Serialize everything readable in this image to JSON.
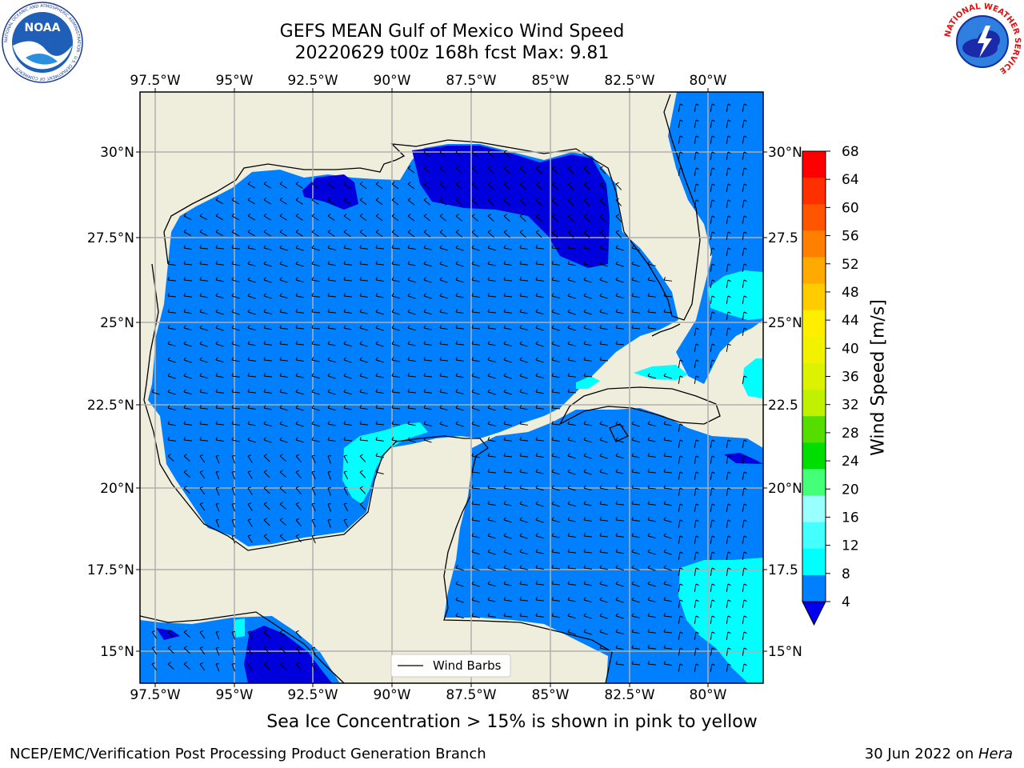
{
  "title": {
    "line1": "GEFS MEAN Gulf of Mexico Wind Speed",
    "line2": "20220629 t00z 168h fcst   Max: 9.81"
  },
  "map": {
    "top_lon_labels": [
      "97.5°W",
      "95°W",
      "92.5°W",
      "90°W",
      "87.5°W",
      "85°W",
      "82.5°W",
      "80°W"
    ],
    "bottom_lon_labels": [
      "97.5°W",
      "95°W",
      "92.5°W",
      "90°W",
      "87.5°W",
      "85°W",
      "82.5°W",
      "80°W"
    ],
    "left_lat_labels": [
      "30°N",
      "27.5°N",
      "25°N",
      "22.5°N",
      "20°N",
      "17.5°N",
      "15°N"
    ],
    "right_lat_labels": [
      "30°N",
      "27.5",
      "25°N",
      "22.5",
      "20°N",
      "17.5",
      "15°N"
    ],
    "legend_label": "Wind Barbs",
    "colors": {
      "land": "#efeedc",
      "ocean_light": "#0080ff",
      "ocean_dark": "#0000dd",
      "ocean_cyan": "#00ffff",
      "grid": "#b0b0b0"
    }
  },
  "colorbar": {
    "label": "Wind Speed [m/s]",
    "ticks": [
      "68",
      "64",
      "60",
      "56",
      "52",
      "48",
      "44",
      "40",
      "36",
      "32",
      "28",
      "24",
      "20",
      "16",
      "12",
      "8",
      "4"
    ],
    "colors": [
      "#ff0000",
      "#ff3000",
      "#ff5500",
      "#ff8000",
      "#ffaa00",
      "#ffcc00",
      "#ffee00",
      "#f2f200",
      "#ddf200",
      "#c0f200",
      "#55dd00",
      "#00dd00",
      "#44ff77",
      "#99ffff",
      "#44ffff",
      "#00ffff",
      "#0080ff"
    ],
    "under_color": "#0000ee"
  },
  "logos": {
    "noaa_text": "NOAA",
    "noaa_ring_text": "NATIONAL OCEANIC AND ATMOSPHERIC ADMINISTRATION · U.S. DEPARTMENT OF COMMERCE",
    "nws_ring_text": "NATIONAL WEATHER SERVICE"
  },
  "caption": "Sea Ice Concentration > 15% is shown in pink to yellow",
  "footer": {
    "left": "NCEP/EMC/Verification Post Processing Product Generation Branch",
    "right_prefix": "30 Jun 2022 on ",
    "right_italic": "Hera"
  }
}
